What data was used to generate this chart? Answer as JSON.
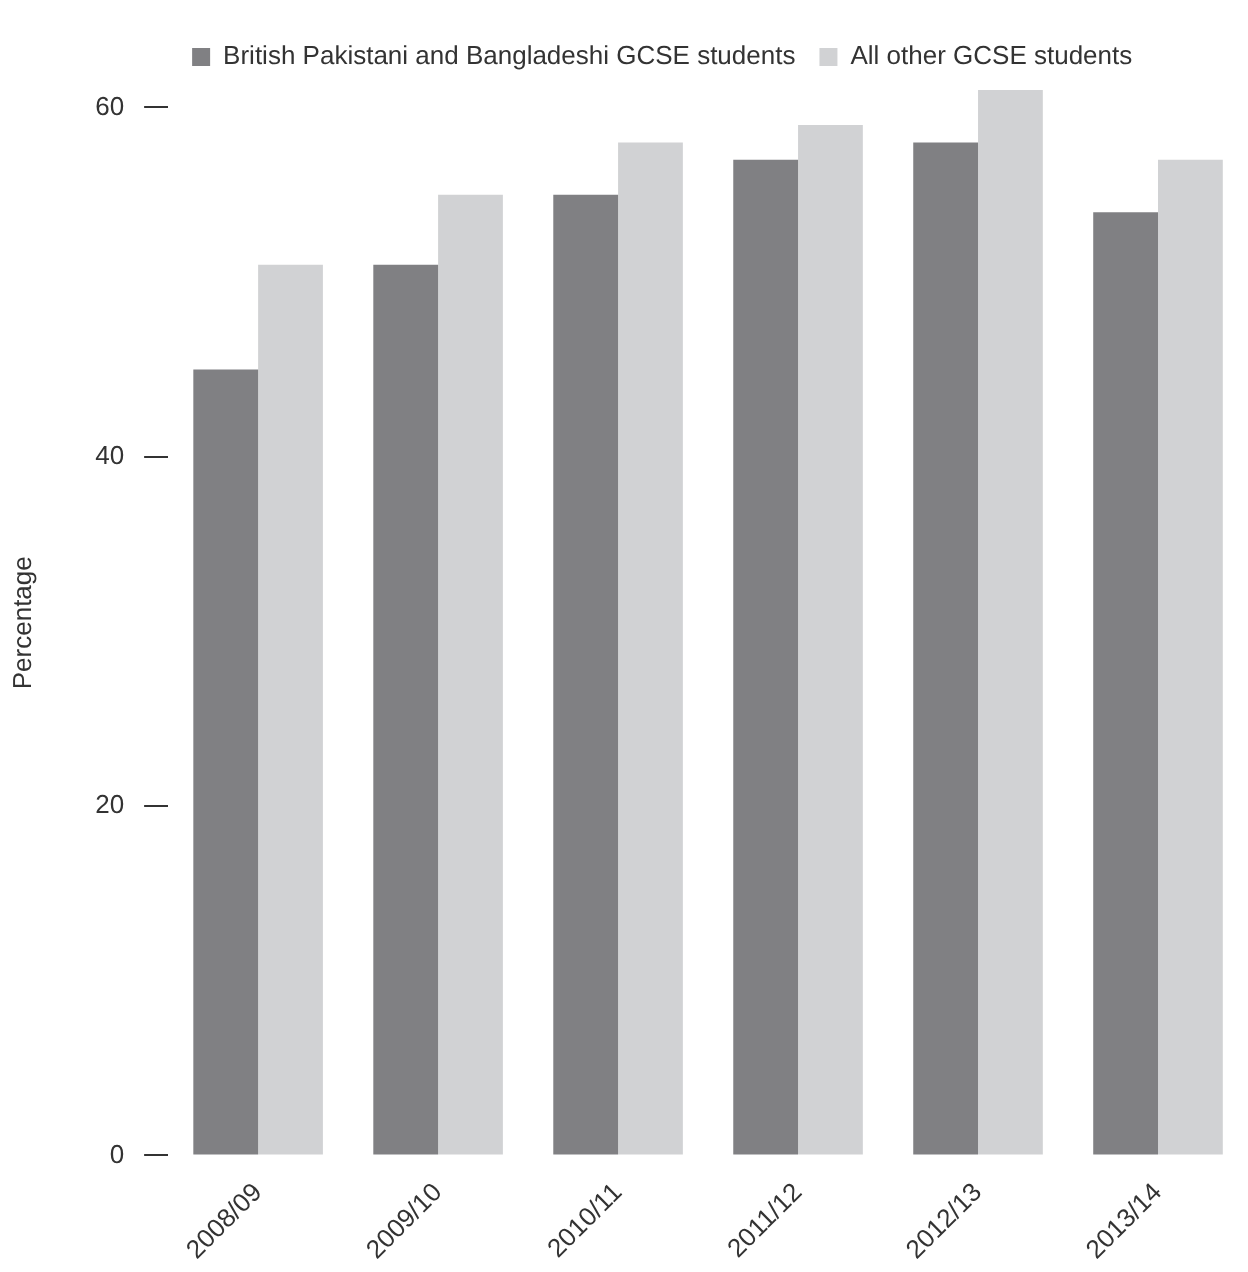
{
  "chart_data": {
    "type": "bar",
    "ylabel": "Percentage",
    "categories": [
      "2008/09",
      "2009/10",
      "2010/11",
      "2011/12",
      "2012/13",
      "2013/14"
    ],
    "series": [
      {
        "name": "British Pakistani and Bangladeshi GCSE students",
        "color": "#808083",
        "values": [
          45,
          51,
          55,
          57,
          58,
          54
        ]
      },
      {
        "name": "All other GCSE students",
        "color": "#d1d2d4",
        "values": [
          51,
          55,
          58,
          59,
          61,
          57
        ]
      }
    ],
    "ylim": [
      0,
      61
    ],
    "yticks": [
      0,
      20,
      40,
      60
    ],
    "grid": false,
    "legend": "top left"
  }
}
